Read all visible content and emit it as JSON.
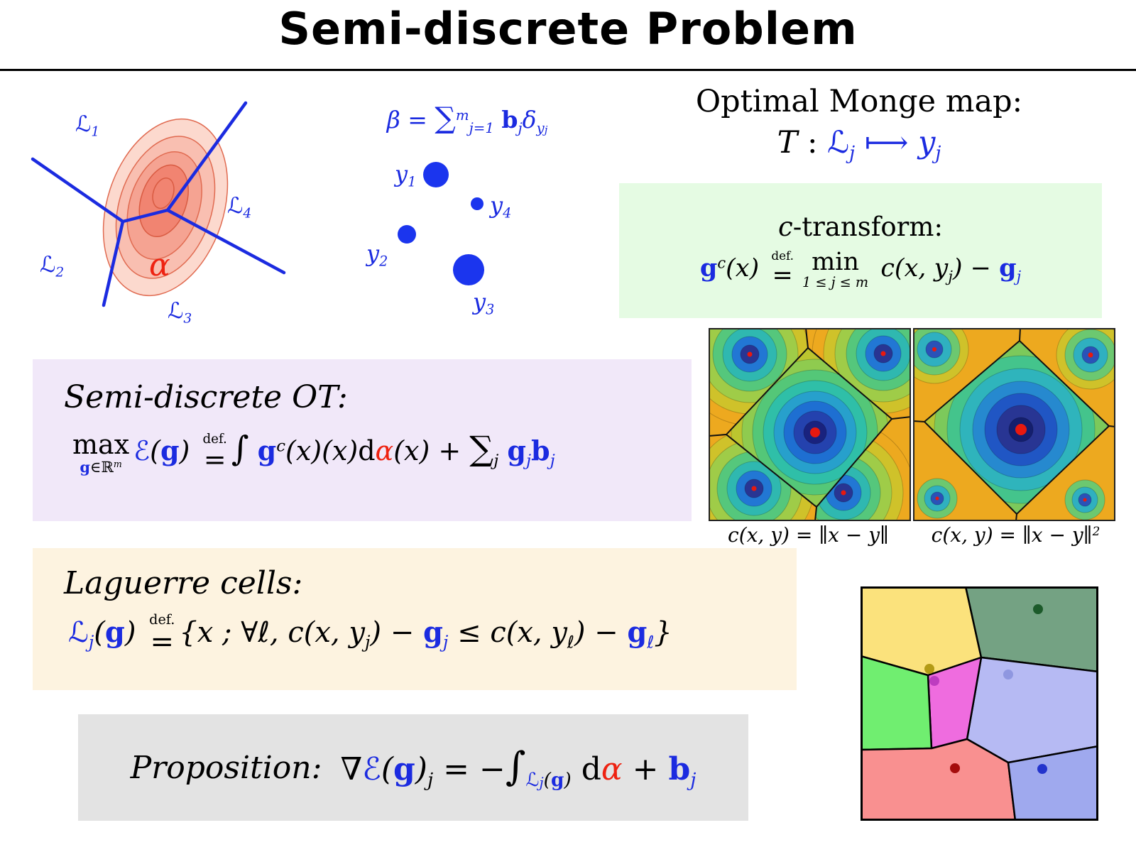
{
  "colors": {
    "math_blue": "#1b2be0",
    "math_red": "#ee2211",
    "dot_blue": "#1b35ee",
    "box_green": "#e5fbe3",
    "box_purple": "#f1e8f9",
    "box_cream": "#fdf3e0",
    "box_gray": "#e3e3e3",
    "density_red": "#f18471"
  },
  "title": "Semi-discrete Problem",
  "voronoi_figure": {
    "labels": {
      "l1": [
        [
          "ℒ",
          "b"
        ],
        [
          "1",
          "sub b"
        ]
      ],
      "l2": [
        [
          "ℒ",
          "b"
        ],
        [
          "2",
          "sub b"
        ]
      ],
      "l3": [
        [
          "ℒ",
          "b"
        ],
        [
          "3",
          "sub b"
        ]
      ],
      "l4": [
        [
          "ℒ",
          "b"
        ],
        [
          "4",
          "sub b"
        ]
      ],
      "alpha": [
        [
          "α",
          "r"
        ]
      ]
    }
  },
  "beta_figure": {
    "formula": [
      [
        "β = ",
        "b"
      ],
      [
        "∑",
        "b big"
      ],
      [
        "m",
        "sup b"
      ],
      [
        "j=1",
        "sub b"
      ],
      [
        " ",
        "b"
      ],
      [
        "b",
        "bb"
      ],
      [
        "j",
        "sub b"
      ],
      [
        "δ",
        "b"
      ],
      [
        "y",
        "sub b"
      ],
      [
        "j",
        "subsub b"
      ]
    ],
    "point_labels": {
      "y1": [
        [
          "y",
          "b"
        ],
        [
          "1",
          "sub b"
        ]
      ],
      "y2": [
        [
          "y",
          "b"
        ],
        [
          "2",
          "sub b"
        ]
      ],
      "y3": [
        [
          "y",
          "b"
        ],
        [
          "3",
          "sub b"
        ]
      ],
      "y4": [
        [
          "y",
          "b"
        ],
        [
          "4",
          "sub b"
        ]
      ]
    }
  },
  "monge": {
    "heading": "Optimal Monge map:",
    "map": [
      [
        "T",
        ""
      ],
      [
        " : ",
        "up"
      ],
      [
        "ℒ",
        "b"
      ],
      [
        "j",
        "sub b"
      ],
      [
        " ⟼ ",
        "b"
      ],
      [
        "y",
        "b"
      ],
      [
        "j",
        "sub b"
      ]
    ]
  },
  "c_transform": {
    "heading": [
      [
        "c",
        ""
      ],
      [
        "-transform:",
        "up"
      ]
    ],
    "formula": [
      [
        "g",
        "bb"
      ],
      [
        "c",
        "sup"
      ],
      [
        "(x) ",
        ""
      ],
      [
        "=",
        "up",
        {
          "over": "def."
        }
      ],
      [
        "min",
        "up",
        {
          "under": "1 ≤ j ≤ m"
        }
      ],
      [
        " c(x, y",
        ""
      ],
      [
        "j",
        "sub"
      ],
      [
        ") − ",
        ""
      ],
      [
        "g",
        "bb"
      ],
      [
        "j",
        "sub b"
      ]
    ]
  },
  "semi_discrete": {
    "heading": "Semi-discrete OT:",
    "formula": [
      [
        "max",
        "up",
        {
          "under": [
            [
              "g",
              "bb"
            ],
            [
              "∈",
              "up"
            ],
            [
              "ℝ",
              "up"
            ],
            [
              "m",
              "sup"
            ]
          ]
        }
      ],
      [
        "ℰ",
        "b"
      ],
      [
        "(",
        ""
      ],
      [
        "g",
        "bb"
      ],
      [
        ") ",
        ""
      ],
      [
        "=",
        "up",
        {
          "over": "def."
        }
      ],
      [
        "∫",
        "big"
      ],
      [
        " ",
        ""
      ],
      [
        "g",
        "bb"
      ],
      [
        "c",
        "sup"
      ],
      [
        "(x)(x)",
        ""
      ],
      [
        "d",
        "up"
      ],
      [
        "α",
        "r"
      ],
      [
        "(x) + ",
        ""
      ],
      [
        "∑",
        "big"
      ],
      [
        "j",
        "sub"
      ],
      [
        " ",
        ""
      ],
      [
        "g",
        "bb"
      ],
      [
        "j",
        "sub b"
      ],
      [
        "b",
        "bb"
      ],
      [
        "j",
        "sub b"
      ]
    ]
  },
  "heatmaps": {
    "caption_l1": [
      [
        "c(x, y) = ∥x − y∥",
        ""
      ]
    ],
    "caption_l2": [
      [
        "c(x, y) = ∥x − y∥",
        ""
      ],
      [
        "2",
        "sup"
      ]
    ]
  },
  "laguerre": {
    "heading": "Laguerre cells:",
    "formula": [
      [
        "ℒ",
        "b"
      ],
      [
        "j",
        "sub b"
      ],
      [
        "(",
        ""
      ],
      [
        "g",
        "bb"
      ],
      [
        ") ",
        ""
      ],
      [
        "=",
        "up",
        {
          "over": "def."
        }
      ],
      [
        "{",
        ""
      ],
      [
        "x ; ∀ℓ, c(x, y",
        ""
      ],
      [
        "j",
        "sub"
      ],
      [
        ") − ",
        ""
      ],
      [
        "g",
        "bb"
      ],
      [
        "j",
        "sub b"
      ],
      [
        " ≤ c(x, y",
        ""
      ],
      [
        "ℓ",
        "sub"
      ],
      [
        ") − ",
        ""
      ],
      [
        "g",
        "bb"
      ],
      [
        "ℓ",
        "sub b"
      ],
      [
        "}",
        ""
      ]
    ]
  },
  "proposition": {
    "heading": "Proposition:",
    "formula": [
      [
        "∇",
        ""
      ],
      [
        "ℰ",
        "b"
      ],
      [
        "(",
        ""
      ],
      [
        "g",
        "bb"
      ],
      [
        ")",
        ""
      ],
      [
        "j",
        "sub"
      ],
      [
        " = −",
        ""
      ],
      [
        "∫",
        "big"
      ],
      [
        "ℒ",
        "sub b"
      ],
      [
        "j",
        "subsub b"
      ],
      [
        "(",
        "sub"
      ],
      [
        "g",
        "sub bb"
      ],
      [
        ")",
        "sub"
      ],
      [
        " ",
        ""
      ],
      [
        "d",
        "up"
      ],
      [
        "α",
        "r"
      ],
      [
        " + ",
        ""
      ],
      [
        "b",
        "bb"
      ],
      [
        "j",
        "sub b"
      ]
    ]
  },
  "laguerre_diagram": {
    "cell_colors": [
      "#fbe27c",
      "#74a283",
      "#b6baf3",
      "#ef6cdf",
      "#70ee70",
      "#f99090",
      "#9fa9ee"
    ],
    "dot_colors": [
      "#b39b16",
      "#bd3cc0",
      "#8f97e0",
      "#1c5a2a",
      "#a50d0d",
      "#2334cc"
    ]
  }
}
